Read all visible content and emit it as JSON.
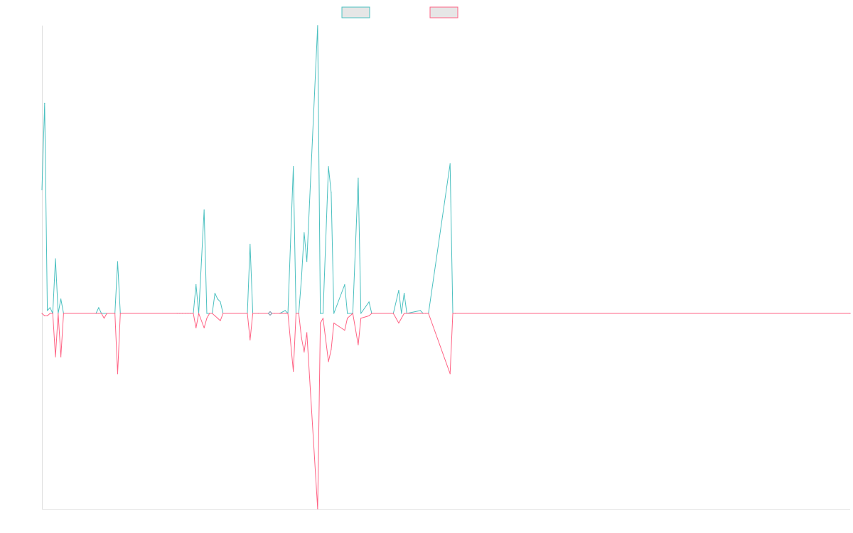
{
  "chart_data": {
    "type": "line",
    "title": "",
    "xlabel": "",
    "ylabel": "",
    "legend": "top-center",
    "grid": false,
    "x_count": 300,
    "ylim": [
      -1,
      1
    ],
    "series": [
      {
        "name": "",
        "color": "#4bc0c0",
        "fill": "#e6e6e6",
        "points": [
          [
            0,
            0.43
          ],
          [
            1,
            0.73
          ],
          [
            2,
            0.01
          ],
          [
            3,
            0.02
          ],
          [
            4,
            0.0
          ],
          [
            5,
            0.19
          ],
          [
            6,
            0.0
          ],
          [
            7,
            0.05
          ],
          [
            8,
            0.0
          ],
          [
            20,
            0.0
          ],
          [
            21,
            0.02
          ],
          [
            22,
            0.0
          ],
          [
            27,
            0.0
          ],
          [
            28,
            0.18
          ],
          [
            29,
            0.0
          ],
          [
            50,
            0.0
          ],
          [
            51,
            0.0
          ],
          [
            52,
            0.0
          ],
          [
            53,
            0.0
          ],
          [
            54,
            0.0
          ],
          [
            55,
            0.0
          ],
          [
            56,
            0.0
          ],
          [
            57,
            0.1
          ],
          [
            58,
            0.0
          ],
          [
            60,
            0.36
          ],
          [
            61,
            0.0
          ],
          [
            62,
            0.0
          ],
          [
            63,
            0.0
          ],
          [
            64,
            0.07
          ],
          [
            65,
            0.05
          ],
          [
            66,
            0.04
          ],
          [
            67,
            0.0
          ],
          [
            76,
            0.0
          ],
          [
            77,
            0.24
          ],
          [
            78,
            0.0
          ],
          [
            80,
            0.0
          ],
          [
            84,
            0.0
          ],
          [
            86,
            0.0
          ],
          [
            88,
            0.0
          ],
          [
            90,
            0.01
          ],
          [
            91,
            0.0
          ],
          [
            93,
            0.51
          ],
          [
            94,
            0.0
          ],
          [
            95,
            0.0
          ],
          [
            96,
            0.12
          ],
          [
            97,
            0.28
          ],
          [
            98,
            0.18
          ],
          [
            102,
            1.0
          ],
          [
            103,
            0.0
          ],
          [
            104,
            0.0
          ],
          [
            106,
            0.51
          ],
          [
            107,
            0.42
          ],
          [
            108,
            0.0
          ],
          [
            112,
            0.1
          ],
          [
            113,
            0.0
          ],
          [
            115,
            0.0
          ],
          [
            117,
            0.47
          ],
          [
            118,
            0.0
          ],
          [
            121,
            0.04
          ],
          [
            122,
            0.0
          ],
          [
            130,
            0.0
          ],
          [
            132,
            0.08
          ],
          [
            133,
            0.0
          ],
          [
            134,
            0.07
          ],
          [
            135,
            0.0
          ],
          [
            140,
            0.01
          ],
          [
            141,
            0.0
          ],
          [
            142,
            0.0
          ],
          [
            143,
            0.0
          ],
          [
            151,
            0.52
          ],
          [
            152,
            0.0
          ],
          [
            153,
            0.0
          ],
          [
            299,
            0.0
          ]
        ]
      },
      {
        "name": "",
        "color": "#ff6384",
        "fill": "#e6e6e6",
        "points": [
          [
            0,
            0.0
          ],
          [
            1,
            -0.01
          ],
          [
            2,
            -0.01
          ],
          [
            3,
            0.0
          ],
          [
            4,
            0.0
          ],
          [
            5,
            -0.18
          ],
          [
            6,
            0.0
          ],
          [
            7,
            -0.18
          ],
          [
            8,
            0.0
          ],
          [
            20,
            0.0
          ],
          [
            21,
            0.0
          ],
          [
            22,
            0.0
          ],
          [
            23,
            -0.02
          ],
          [
            24,
            0.0
          ],
          [
            27,
            0.0
          ],
          [
            28,
            -0.25
          ],
          [
            29,
            0.0
          ],
          [
            50,
            0.0
          ],
          [
            51,
            0.0
          ],
          [
            52,
            0.0
          ],
          [
            53,
            0.0
          ],
          [
            54,
            0.0
          ],
          [
            55,
            0.0
          ],
          [
            56,
            0.0
          ],
          [
            57,
            -0.06
          ],
          [
            58,
            0.0
          ],
          [
            60,
            -0.06
          ],
          [
            61,
            -0.02
          ],
          [
            62,
            0.0
          ],
          [
            63,
            0.0
          ],
          [
            64,
            -0.01
          ],
          [
            65,
            -0.02
          ],
          [
            66,
            -0.03
          ],
          [
            67,
            0.0
          ],
          [
            76,
            0.0
          ],
          [
            77,
            -0.11
          ],
          [
            78,
            0.0
          ],
          [
            80,
            0.0
          ],
          [
            84,
            0.0
          ],
          [
            86,
            0.0
          ],
          [
            88,
            0.0
          ],
          [
            90,
            0.0
          ],
          [
            91,
            0.0
          ],
          [
            93,
            -0.24
          ],
          [
            94,
            0.0
          ],
          [
            95,
            0.0
          ],
          [
            96,
            -0.1
          ],
          [
            97,
            -0.16
          ],
          [
            98,
            -0.08
          ],
          [
            102,
            -0.81
          ],
          [
            103,
            -0.04
          ],
          [
            104,
            -0.02
          ],
          [
            106,
            -0.2
          ],
          [
            107,
            -0.15
          ],
          [
            108,
            -0.04
          ],
          [
            112,
            -0.07
          ],
          [
            113,
            -0.02
          ],
          [
            115,
            0.0
          ],
          [
            117,
            -0.13
          ],
          [
            118,
            -0.02
          ],
          [
            121,
            -0.01
          ],
          [
            122,
            0.0
          ],
          [
            130,
            0.0
          ],
          [
            132,
            -0.04
          ],
          [
            133,
            -0.02
          ],
          [
            134,
            0.0
          ],
          [
            135,
            0.0
          ],
          [
            140,
            0.0
          ],
          [
            141,
            0.0
          ],
          [
            142,
            0.0
          ],
          [
            143,
            0.0
          ],
          [
            151,
            -0.25
          ],
          [
            152,
            0.0
          ],
          [
            153,
            0.0
          ],
          [
            299,
            0.0
          ]
        ]
      }
    ]
  }
}
